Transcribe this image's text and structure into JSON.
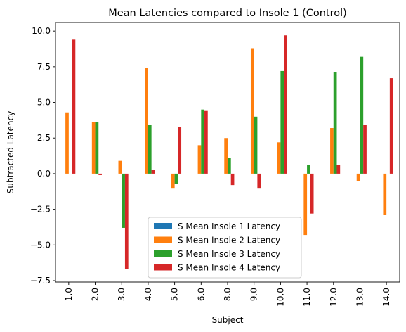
{
  "chart_data": {
    "type": "bar",
    "title": "Mean Latencies compared to Insole 1 (Control)",
    "xlabel": "Subject",
    "ylabel": "Subtracted Latency",
    "categories": [
      "1.0",
      "2.0",
      "3.0",
      "4.0",
      "5.0",
      "6.0",
      "8.0",
      "9.0",
      "10.0",
      "11.0",
      "12.0",
      "13.0",
      "14.0"
    ],
    "ylim": [
      -7.6,
      10.6
    ],
    "yticks": [
      -7.5,
      -5.0,
      -2.5,
      0.0,
      2.5,
      5.0,
      7.5,
      10.0
    ],
    "ytick_labels": [
      "−7.5",
      "−5.0",
      "−2.5",
      "0.0",
      "2.5",
      "5.0",
      "7.5",
      "10.0"
    ],
    "legend_position": "lower-center",
    "grid": false,
    "series": [
      {
        "name": "S Mean Insole 1 Latency",
        "color": "#1f77b4",
        "values": [
          0,
          0,
          0,
          0,
          0,
          0,
          0,
          0,
          0,
          0,
          0,
          0,
          0
        ]
      },
      {
        "name": "S Mean Insole 2 Latency",
        "color": "#ff7f0e",
        "values": [
          4.3,
          3.6,
          0.9,
          7.4,
          -1.0,
          2.0,
          2.5,
          8.8,
          2.2,
          -4.3,
          3.2,
          -0.5,
          -2.9
        ]
      },
      {
        "name": "S Mean Insole 3 Latency",
        "color": "#2ca02c",
        "values": [
          0,
          3.6,
          -3.8,
          3.4,
          -0.7,
          4.5,
          1.1,
          4.0,
          7.2,
          0.6,
          7.1,
          8.2,
          0
        ]
      },
      {
        "name": "S Mean Insole 4 Latency",
        "color": "#d62728",
        "values": [
          9.4,
          -0.1,
          -6.7,
          0.25,
          3.3,
          4.4,
          -0.8,
          -1.0,
          9.7,
          -2.8,
          0.6,
          3.4,
          6.7
        ]
      }
    ]
  }
}
